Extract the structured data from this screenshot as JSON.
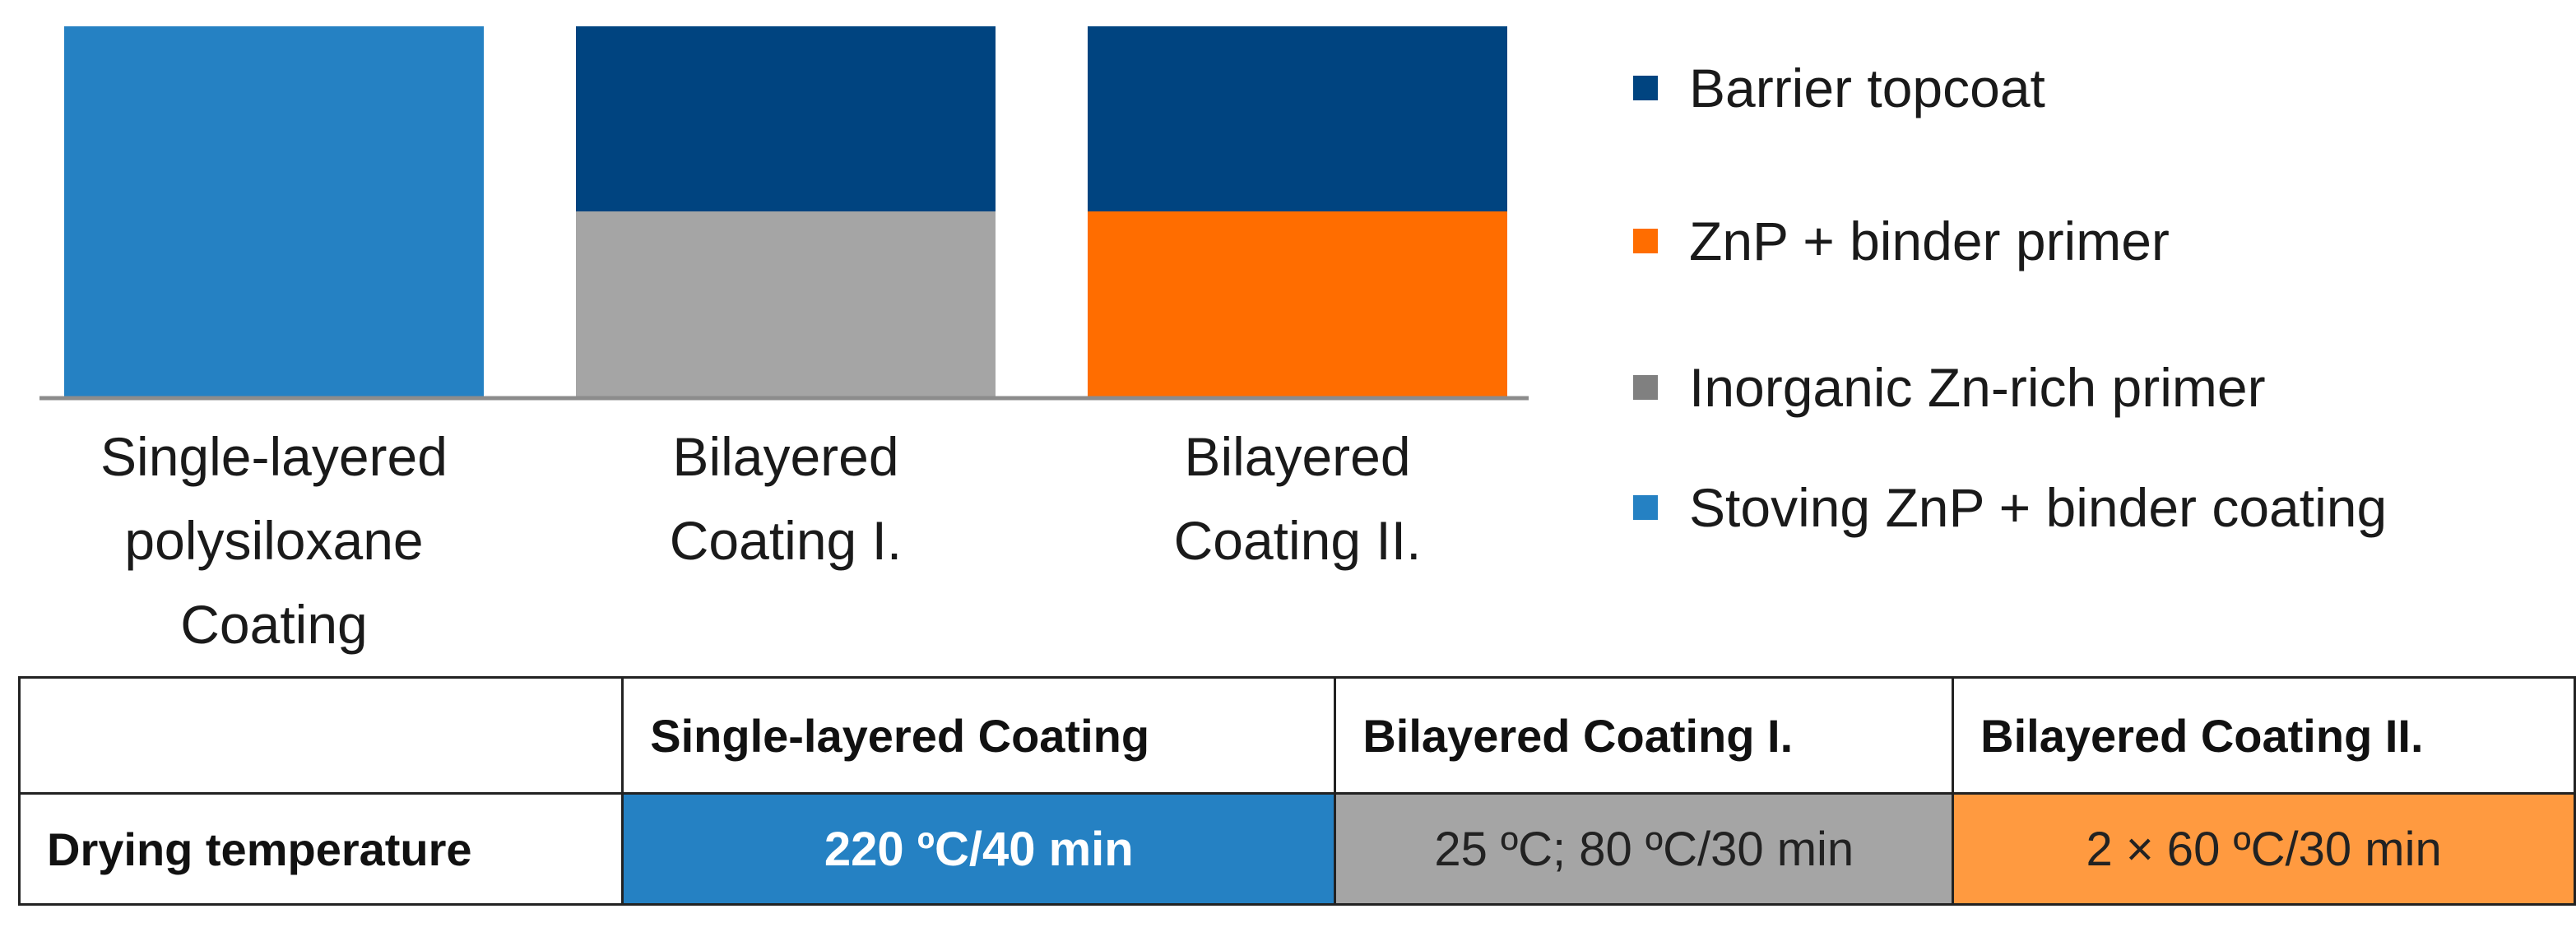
{
  "chart_data": {
    "type": "bar",
    "stacked": true,
    "categories": [
      [
        "Single-layered",
        "polysiloxane",
        "Coating"
      ],
      [
        "Bilayered",
        "Coating I."
      ],
      [
        "Bilayered",
        "Coating II."
      ]
    ],
    "series": [
      {
        "name": "Stoving ZnP + binder coating",
        "color": "#2581c3",
        "values": [
          2,
          0,
          0
        ]
      },
      {
        "name": "Inorganic Zn-rich primer",
        "color": "#a5a5a5",
        "values": [
          0,
          1,
          0
        ]
      },
      {
        "name": "ZnP + binder primer",
        "color": "#ff6d00",
        "values": [
          0,
          0,
          1
        ]
      },
      {
        "name": "Barrier topcoat",
        "color": "#004480",
        "values": [
          0,
          1,
          1
        ]
      }
    ],
    "legend_order": [
      "Barrier topcoat",
      "ZnP + binder primer",
      "Inorganic Zn-rich primer",
      "Stoving ZnP + binder coating"
    ],
    "legend_colors": {
      "Barrier topcoat": "#004480",
      "ZnP + binder primer": "#ff6d00",
      "Inorganic Zn-rich primer": "#808080",
      "Stoving ZnP + binder coating": "#2581c3"
    },
    "ylim": [
      0,
      2
    ],
    "legend_position": "right",
    "title": "",
    "xlabel": "",
    "ylabel": ""
  },
  "table": {
    "headers": [
      "",
      "Single-layered Coating",
      "Bilayered  Coating  I.",
      "Bilayered  Coating  II."
    ],
    "row_label": "Drying temperature",
    "cells": [
      "220 ºC/40 min",
      "25 ºC; 80 ºC/30 min",
      "2 × 60 ºC/30 min"
    ],
    "cell_colors": [
      "#2581c3",
      "#a5a5a5",
      "#ff9a40"
    ],
    "cell_text_colors": [
      "#ffffff",
      "#222222",
      "#222222"
    ]
  }
}
